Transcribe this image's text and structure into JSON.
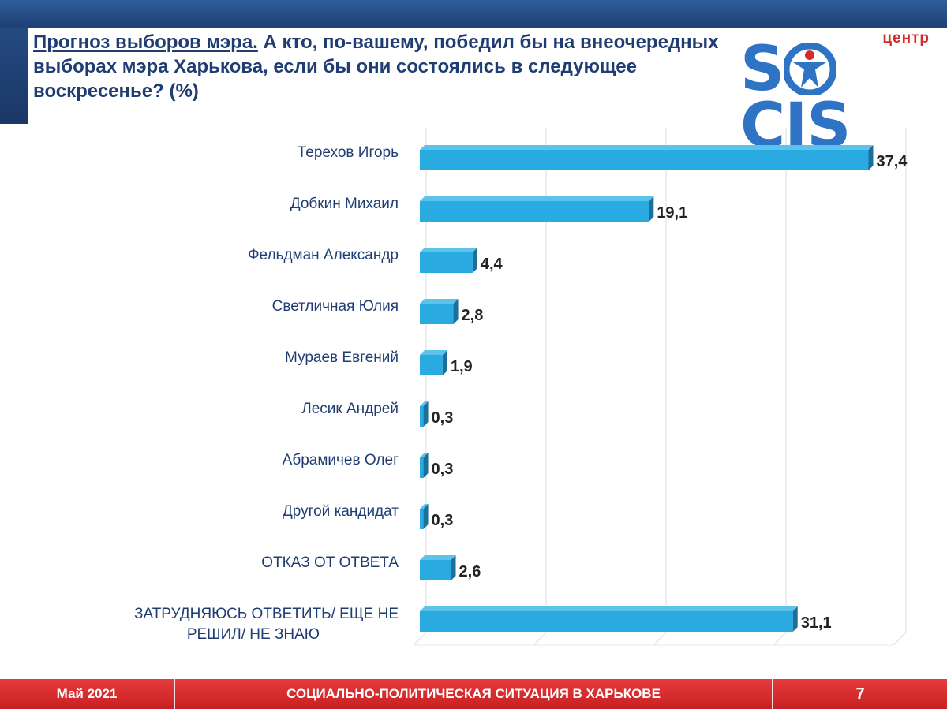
{
  "header": {
    "title_underlined": "Прогноз выборов мэра.",
    "title_rest": " А кто, по-вашему, победил бы на внеочередных выборах мэра Харькова, если бы они состоялись в следующее воскресенье? (%)"
  },
  "logo": {
    "top_text": "центр",
    "word_left": "S",
    "word_right": "CIS"
  },
  "chart_data": {
    "type": "bar",
    "orientation": "horizontal",
    "categories": [
      "Терехов Игорь",
      "Добкин Михаил",
      "Фельдман Александр",
      "Светличная Юлия",
      "Мураев Евгений",
      "Лесик Андрей",
      "Абрамичев Олег",
      "Другой кандидат",
      "ОТКАЗ ОТ ОТВЕТА",
      "ЗАТРУДНЯЮСЬ ОТВЕТИТЬ/ ЕЩЕ НЕ РЕШИЛ/ НЕ ЗНАЮ"
    ],
    "values": [
      37.4,
      19.1,
      4.4,
      2.8,
      1.9,
      0.3,
      0.3,
      0.3,
      2.6,
      31.1
    ],
    "value_labels": [
      "37,4",
      "19,1",
      "4,4",
      "2,8",
      "1,9",
      "0,3",
      "0,3",
      "0,3",
      "2,6",
      "31,1"
    ],
    "xlim": [
      0,
      40
    ],
    "grid": true,
    "bar_color": "#29abe2"
  },
  "footer": {
    "date": "Май 2021",
    "title": "СОЦИАЛЬНО-ПОЛИТИЧЕСКАЯ СИТУАЦИЯ В ХАРЬКОВЕ",
    "page": "7"
  },
  "colors": {
    "title": "#1f3d73",
    "footer": "#d42a2a",
    "header_band": "#1e3f73",
    "logo_blue": "#2f74c4",
    "logo_red": "#d42a2a"
  }
}
